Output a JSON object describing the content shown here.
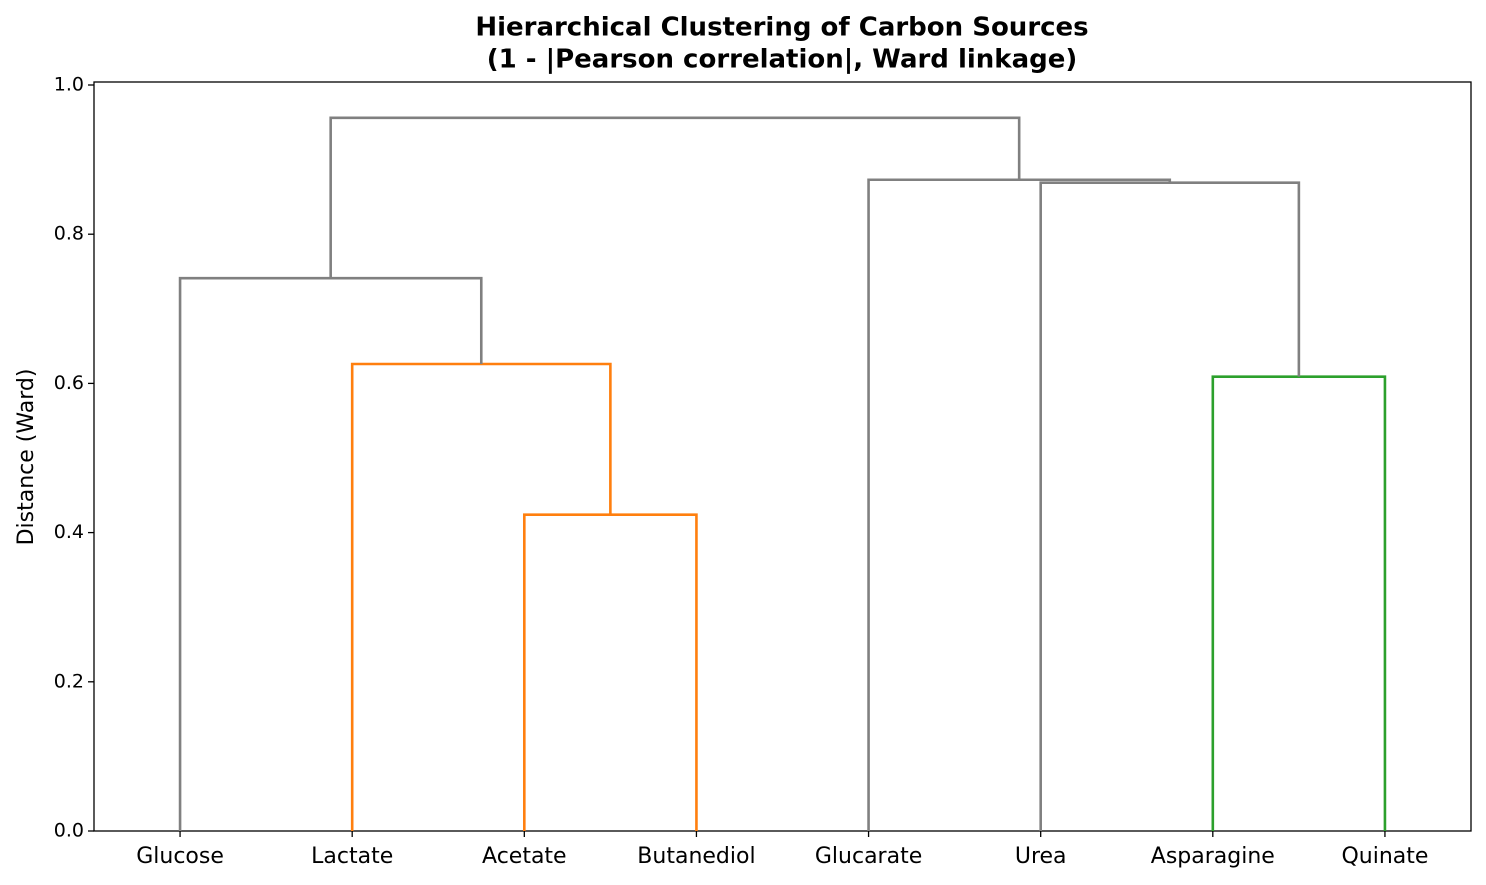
{
  "chart_data": {
    "type": "dendrogram",
    "title": [
      "Hierarchical Clustering of Carbon Sources",
      "(1 - |Pearson correlation|, Ward linkage)"
    ],
    "ylabel": "Distance (Ward)",
    "categories": [
      "Glucose",
      "Lactate",
      "Acetate",
      "Butanediol",
      "Glucarate",
      "Urea",
      "Asparagine",
      "Quinate"
    ],
    "merges": [
      {
        "children": [
          2,
          3
        ],
        "height": 0.424,
        "color": "#ff7f0e"
      },
      {
        "children": [
          1,
          8
        ],
        "height": 0.626,
        "color": "#ff7f0e"
      },
      {
        "children": [
          6,
          7
        ],
        "height": 0.609,
        "color": "#2ca02c"
      },
      {
        "children": [
          0,
          9
        ],
        "height": 0.741,
        "color": "#808080"
      },
      {
        "children": [
          5,
          10
        ],
        "height": 0.869,
        "color": "#808080"
      },
      {
        "children": [
          4,
          12
        ],
        "height": 0.873,
        "color": "#808080"
      },
      {
        "children": [
          11,
          13
        ],
        "height": 0.956,
        "color": "#808080"
      }
    ],
    "ylim": [
      0,
      1.0
    ],
    "yticks": [
      {
        "value": 0,
        "label": "0.0"
      },
      0.2,
      0.4,
      0.6,
      0.8,
      {
        "value": 1.0,
        "label": "1.0"
      }
    ]
  }
}
